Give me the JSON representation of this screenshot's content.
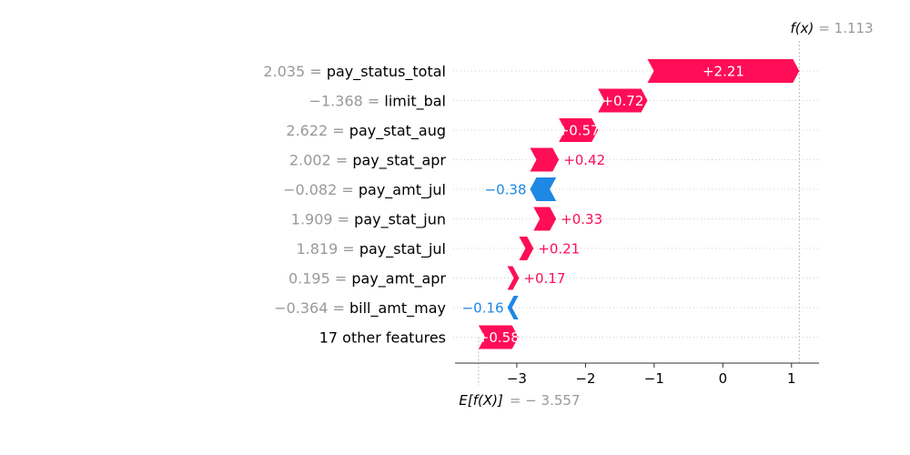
{
  "chart_data": {
    "type": "waterfall",
    "fx_label": "f(x)",
    "fx_value_text": "= 1.113",
    "fx_value": 1.113,
    "base_label": "E[f(X)]",
    "base_value_text": "= − 3.557",
    "base_value": -3.557,
    "xlim": [
      -3.9,
      1.4
    ],
    "xticks": [
      {
        "value": -3,
        "label": "−3"
      },
      {
        "value": -2,
        "label": "−2"
      },
      {
        "value": -1,
        "label": "−1"
      },
      {
        "value": 0,
        "label": "0"
      },
      {
        "value": 1,
        "label": "1"
      }
    ],
    "features": [
      {
        "value_label": "2.035 =",
        "name": "pay_status_total",
        "contribution": 2.21,
        "label": "+2.21"
      },
      {
        "value_label": "−1.368 =",
        "name": "limit_bal",
        "contribution": 0.72,
        "label": "+0.72"
      },
      {
        "value_label": "2.622 =",
        "name": "pay_stat_aug",
        "contribution": 0.57,
        "label": "+0.57"
      },
      {
        "value_label": "2.002 =",
        "name": "pay_stat_apr",
        "contribution": 0.42,
        "label": "+0.42"
      },
      {
        "value_label": "−0.082 =",
        "name": "pay_amt_jul",
        "contribution": -0.38,
        "label": "−0.38"
      },
      {
        "value_label": "1.909 =",
        "name": "pay_stat_jun",
        "contribution": 0.33,
        "label": "+0.33"
      },
      {
        "value_label": "1.819 =",
        "name": "pay_stat_jul",
        "contribution": 0.21,
        "label": "+0.21"
      },
      {
        "value_label": "0.195 =",
        "name": "pay_amt_apr",
        "contribution": 0.17,
        "label": "+0.17"
      },
      {
        "value_label": "−0.364 =",
        "name": "bill_amt_may",
        "contribution": -0.16,
        "label": "−0.16"
      },
      {
        "value_label": "",
        "name": "17 other features",
        "contribution": 0.58,
        "label": "+0.58"
      }
    ],
    "colors": {
      "positive": "#ff0d57",
      "negative": "#1e88e5",
      "value_gray": "#999999",
      "name_text": "#000000",
      "axis": "#333333",
      "grid": "#cccccc"
    }
  }
}
